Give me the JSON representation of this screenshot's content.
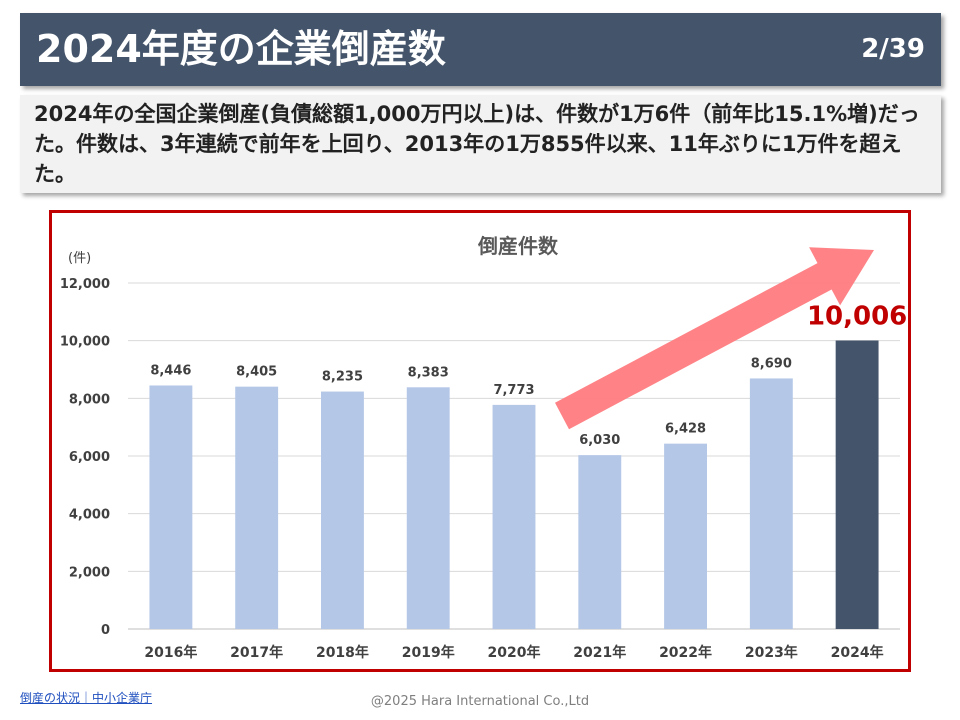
{
  "header": {
    "title": "2024年度の企業倒産数",
    "page_number": "2/39"
  },
  "summary": {
    "text": "2024年の全国企業倒産(負債総額1,000万円以上)は、件数が1万6件（前年比15.1%増)だった。件数は、3年連続で前年を上回り、2013年の1万855件以来、11年ぶりに1万件を超えた。"
  },
  "footer": {
    "source_link": "倒産の状況｜中小企業庁",
    "copyright": "@2025 Hara International Co.,Ltd"
  },
  "colors": {
    "header_bg": "#44546a",
    "bar_default": "#b4c7e7",
    "bar_highlight": "#44546a",
    "highlight_label": "#c00000",
    "arrow": "#ff7c80",
    "frame": "#c00000"
  },
  "chart_data": {
    "type": "bar",
    "title": "倒産件数",
    "ylabel": "(件)",
    "categories": [
      "2016年",
      "2017年",
      "2018年",
      "2019年",
      "2020年",
      "2021年",
      "2022年",
      "2023年",
      "2024年"
    ],
    "values": [
      8446,
      8405,
      8235,
      8383,
      7773,
      6030,
      6428,
      8690,
      10006
    ],
    "data_labels": [
      "8,446",
      "8,405",
      "8,235",
      "8,383",
      "7,773",
      "6,030",
      "6,428",
      "8,690",
      "10,006"
    ],
    "highlight_index": 8,
    "ylim": [
      0,
      12000
    ],
    "yticks": [
      0,
      2000,
      4000,
      6000,
      8000,
      10000,
      12000
    ],
    "ytick_labels": [
      "0",
      "2,000",
      "4,000",
      "6,000",
      "8,000",
      "10,000",
      "12,000"
    ],
    "grid": true,
    "legend": "none",
    "annotation": "upward trend arrow from 2021 to 2024"
  }
}
